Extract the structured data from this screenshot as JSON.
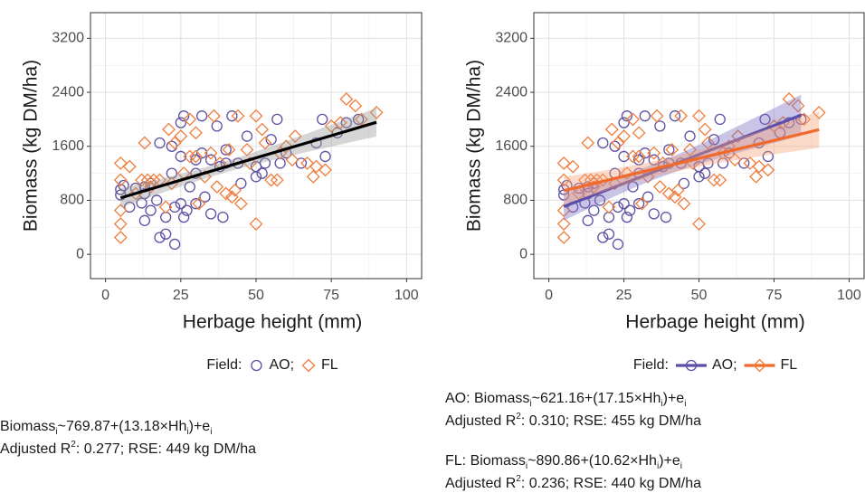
{
  "chart_data": [
    {
      "type": "scatter",
      "xlabel": "Herbage height (mm)",
      "ylabel": "Biomass (kg DM/ha)",
      "xlim": [
        -5,
        105
      ],
      "ylim": [
        -360,
        3580
      ],
      "xticks": [
        0,
        25,
        50,
        75,
        100
      ],
      "yticks": [
        0,
        800,
        1600,
        2400,
        3200
      ],
      "grid": true,
      "legend_title": "Field:",
      "legend_separator": ";",
      "legend_lines": false,
      "series": [
        {
          "name": "AO",
          "marker": "circle",
          "color": "#5e4fa2",
          "x": [
            5,
            5,
            6,
            8,
            10,
            12,
            13,
            13,
            13,
            15,
            15,
            17,
            18,
            18,
            20,
            20,
            22,
            22,
            23,
            23,
            25,
            25,
            25,
            26,
            26,
            27,
            28,
            30,
            30,
            30,
            32,
            32,
            33,
            35,
            35,
            37,
            38,
            39,
            40,
            40,
            42,
            44,
            45,
            47,
            50,
            50,
            52,
            53,
            55,
            57,
            58,
            60,
            65,
            70,
            72,
            73,
            77,
            80,
            84
          ],
          "values": [
            960,
            880,
            1020,
            700,
            980,
            760,
            900,
            500,
            1000,
            650,
            1050,
            800,
            1650,
            250,
            550,
            300,
            1600,
            1200,
            700,
            150,
            1950,
            1450,
            750,
            2050,
            550,
            650,
            1000,
            1400,
            1200,
            750,
            2050,
            1500,
            850,
            1400,
            600,
            1900,
            1300,
            550,
            1550,
            1350,
            2050,
            1350,
            1050,
            1750,
            1150,
            1300,
            1200,
            1350,
            1700,
            2000,
            1350,
            1500,
            1350,
            1650,
            2000,
            1450,
            1800,
            1950,
            2000
          ]
        },
        {
          "name": "FL",
          "marker": "diamond",
          "color": "#ef7d3c",
          "x": [
            5,
            5,
            5,
            5,
            5,
            8,
            10,
            12,
            13,
            14,
            15,
            16,
            18,
            20,
            21,
            22,
            23,
            25,
            26,
            28,
            28,
            30,
            30,
            31,
            33,
            35,
            36,
            37,
            38,
            40,
            41,
            42,
            43,
            44,
            45,
            47,
            48,
            50,
            50,
            52,
            53,
            55,
            57,
            58,
            60,
            62,
            63,
            67,
            69,
            70,
            73,
            75,
            78,
            80,
            83,
            85,
            90
          ],
          "values": [
            1350,
            1100,
            650,
            450,
            250,
            1300,
            900,
            1100,
            1650,
            1100,
            1000,
            1100,
            1100,
            700,
            1850,
            1050,
            1650,
            1750,
            1200,
            2000,
            1450,
            1800,
            1450,
            750,
            1150,
            1500,
            2050,
            1000,
            1350,
            900,
            1550,
            850,
            950,
            2050,
            750,
            1550,
            1350,
            2050,
            450,
            1850,
            1650,
            1100,
            1100,
            1500,
            1600,
            1400,
            1750,
            1350,
            1150,
            1300,
            1250,
            1900,
            1950,
            2300,
            2200,
            2000,
            2100
          ]
        }
      ],
      "fits": [
        {
          "over": [
            0,
            1
          ],
          "color": "#000000",
          "band_color": "#999999",
          "intercept": 769.87,
          "slope": 13.18,
          "rse": 449,
          "equation": [
            {
              "text": "Biomass"
            },
            {
              "sub": "i"
            },
            {
              "text": "~769.87+(13.18×Hh"
            },
            {
              "sub": "i"
            },
            {
              "text": ")+e"
            },
            {
              "sub": "i"
            }
          ],
          "stats": [
            {
              "text": "Adjusted R"
            },
            {
              "sup": "2"
            },
            {
              "text": ": 0.277; RSE: 449 kg DM/ha"
            }
          ]
        }
      ]
    },
    {
      "type": "scatter",
      "xlabel": "Herbage height (mm)",
      "ylabel": "Biomass (kg DM/ha)",
      "xlim": [
        -5,
        105
      ],
      "ylim": [
        -360,
        3580
      ],
      "xticks": [
        0,
        25,
        50,
        75,
        100
      ],
      "yticks": [
        0,
        800,
        1600,
        2400,
        3200
      ],
      "grid": true,
      "legend_title": "Field:",
      "legend_separator": ";",
      "legend_lines": true,
      "series": [
        {
          "name": "AO",
          "marker": "circle",
          "color": "#5e4fa2",
          "x": [
            5,
            5,
            6,
            8,
            10,
            12,
            13,
            13,
            13,
            15,
            15,
            17,
            18,
            18,
            20,
            20,
            22,
            22,
            23,
            23,
            25,
            25,
            25,
            26,
            26,
            27,
            28,
            30,
            30,
            30,
            32,
            32,
            33,
            35,
            35,
            37,
            38,
            39,
            40,
            40,
            42,
            44,
            45,
            47,
            50,
            50,
            52,
            53,
            55,
            57,
            58,
            60,
            65,
            70,
            72,
            73,
            77,
            80,
            84
          ],
          "values": [
            960,
            880,
            1020,
            700,
            980,
            760,
            900,
            500,
            1000,
            650,
            1050,
            800,
            1650,
            250,
            550,
            300,
            1600,
            1200,
            700,
            150,
            1950,
            1450,
            750,
            2050,
            550,
            650,
            1000,
            1400,
            1200,
            750,
            2050,
            1500,
            850,
            1400,
            600,
            1900,
            1300,
            550,
            1550,
            1350,
            2050,
            1350,
            1050,
            1750,
            1150,
            1300,
            1200,
            1350,
            1700,
            2000,
            1350,
            1500,
            1350,
            1650,
            2000,
            1450,
            1800,
            1950,
            2000
          ]
        },
        {
          "name": "FL",
          "marker": "diamond",
          "color": "#ef7d3c",
          "x": [
            5,
            5,
            5,
            5,
            5,
            8,
            10,
            12,
            13,
            14,
            15,
            16,
            18,
            20,
            21,
            22,
            23,
            25,
            26,
            28,
            28,
            30,
            30,
            31,
            33,
            35,
            36,
            37,
            38,
            40,
            41,
            42,
            43,
            44,
            45,
            47,
            48,
            50,
            50,
            52,
            53,
            55,
            57,
            58,
            60,
            62,
            63,
            67,
            69,
            70,
            73,
            75,
            78,
            80,
            83,
            85,
            90
          ],
          "values": [
            1350,
            1100,
            650,
            450,
            250,
            1300,
            900,
            1100,
            1650,
            1100,
            1000,
            1100,
            1100,
            700,
            1850,
            1050,
            1650,
            1750,
            1200,
            2000,
            1450,
            1800,
            1450,
            750,
            1150,
            1500,
            2050,
            1000,
            1350,
            900,
            1550,
            850,
            950,
            2050,
            750,
            1550,
            1350,
            2050,
            450,
            1850,
            1650,
            1100,
            1100,
            1500,
            1600,
            1400,
            1750,
            1350,
            1150,
            1300,
            1250,
            1900,
            1950,
            2300,
            2200,
            2000,
            2100
          ]
        }
      ],
      "fits": [
        {
          "over": [
            0
          ],
          "color": "#5b4ea8",
          "band_color": "#7b6fc0",
          "intercept": 621.16,
          "slope": 17.15,
          "rse": 455,
          "equation": [
            {
              "text": "AO: Biomass"
            },
            {
              "sub": "i"
            },
            {
              "text": "~621.16+(17.15×Hh"
            },
            {
              "sub": "i"
            },
            {
              "text": ")+e"
            },
            {
              "sub": "i"
            }
          ],
          "stats": [
            {
              "text": "Adjusted R"
            },
            {
              "sup": "2"
            },
            {
              "text": ": 0.310; RSE: 455 kg DM/ha"
            }
          ]
        },
        {
          "over": [
            1
          ],
          "color": "#f06a2b",
          "band_color": "#f4a27a",
          "intercept": 890.86,
          "slope": 10.62,
          "rse": 440,
          "equation": [
            {
              "text": "FL: Biomass"
            },
            {
              "sub": "i"
            },
            {
              "text": "~890.86+(10.62×Hh"
            },
            {
              "sub": "i"
            },
            {
              "text": ")+e"
            },
            {
              "sub": "i"
            }
          ],
          "stats": [
            {
              "text": "Adjusted R"
            },
            {
              "sup": "2"
            },
            {
              "text": ": 0.236; RSE: 440 kg DM/ha"
            }
          ]
        }
      ]
    }
  ]
}
